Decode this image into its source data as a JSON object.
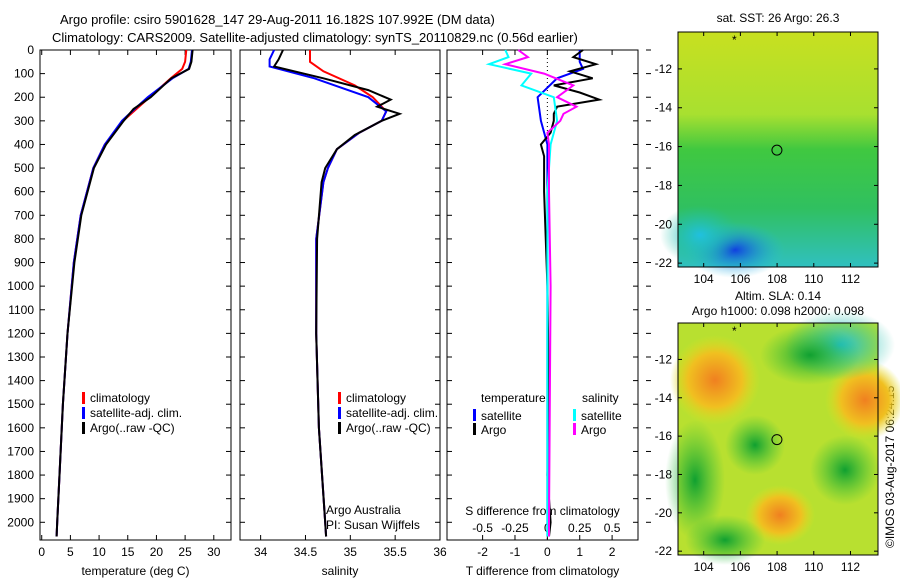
{
  "title_line1": "Argo profile: csiro 5901628_147 29-Aug-2011 16.182S 107.992E (DM data)",
  "title_line2": "Climatology: CARS2009. Satellite-adjusted climatology: synTS_20110829.nc (0.56d earlier)",
  "credit": "©IMOS 03-Aug-2017 06:24:15",
  "colors": {
    "climatology": "#ff0000",
    "satellite": "#0000ff",
    "argo": "#000000",
    "s_satellite": "#00ffff",
    "s_argo": "#ff00ff"
  },
  "chart_data": [
    {
      "type": "line",
      "id": "temperature",
      "xlabel": "temperature (deg C)",
      "ylabel": "",
      "xlim": [
        -0.3,
        33
      ],
      "ylim": [
        2075,
        0
      ],
      "xticks": [
        0,
        5,
        10,
        15,
        20,
        25,
        30
      ],
      "yticks": [
        0,
        100,
        200,
        300,
        400,
        500,
        600,
        700,
        800,
        900,
        1000,
        1100,
        1200,
        1300,
        1400,
        1500,
        1600,
        1700,
        1800,
        1900,
        2000
      ],
      "legend": [
        "climatology",
        "satellite-adj. clim.",
        "Argo(..raw -QC)"
      ],
      "series": [
        {
          "name": "climatology",
          "color": "#ff0000",
          "depth": [
            0,
            50,
            80,
            120,
            200,
            250,
            300,
            400,
            500,
            700,
            900,
            1200,
            1500,
            1800,
            2000,
            2060
          ],
          "values": [
            25.2,
            25,
            24.5,
            22.5,
            18.8,
            16.5,
            14.2,
            11,
            9,
            6.8,
            5.6,
            4.5,
            3.7,
            3.1,
            2.7,
            2.6
          ]
        },
        {
          "name": "satellite-adj. clim.",
          "color": "#0000ff",
          "depth": [
            0,
            50,
            80,
            120,
            200,
            250,
            300,
            400,
            500,
            700,
            900,
            1200,
            1500,
            1800,
            2000,
            2060
          ],
          "values": [
            26.2,
            26,
            25.6,
            22.8,
            18.5,
            16.2,
            14,
            11,
            9,
            6.8,
            5.6,
            4.5,
            3.7,
            3.1,
            2.7,
            2.6
          ]
        },
        {
          "name": "Argo(..raw -QC)",
          "color": "#000000",
          "depth": [
            0,
            50,
            80,
            120,
            200,
            250,
            300,
            400,
            500,
            700,
            900,
            1200,
            1500,
            1800,
            2000,
            2060
          ],
          "values": [
            26.3,
            26.1,
            25.7,
            22.6,
            19,
            16,
            14.3,
            11.2,
            9.1,
            6.9,
            5.7,
            4.5,
            3.7,
            3.1,
            2.7,
            2.6
          ]
        }
      ]
    },
    {
      "type": "line",
      "id": "salinity",
      "xlabel": "salinity",
      "ylabel": "",
      "xlim": [
        33.77,
        36.0
      ],
      "ylim": [
        2075,
        0
      ],
      "xticks": [
        34,
        34.5,
        35,
        35.5,
        36
      ],
      "legend": [
        "climatology",
        "satellite-adj. clim.",
        "Argo(..raw -QC)"
      ],
      "annotation": [
        "Argo Australia",
        "PI: Susan Wijffels"
      ],
      "series": [
        {
          "name": "climatology",
          "color": "#ff0000",
          "depth": [
            0,
            50,
            90,
            150,
            200,
            260,
            300,
            350,
            420,
            500,
            560,
            800,
            1200,
            1600,
            2000,
            2060
          ],
          "values": [
            34.55,
            34.55,
            34.7,
            35.05,
            35.25,
            35.4,
            35.35,
            35.1,
            34.85,
            34.75,
            34.7,
            34.62,
            34.62,
            34.65,
            34.72,
            34.73
          ]
        },
        {
          "name": "satellite-adj. clim.",
          "color": "#0000ff",
          "depth": [
            0,
            40,
            70,
            120,
            200,
            260,
            300,
            350,
            420,
            500,
            560,
            800,
            1200,
            1600,
            2000,
            2060
          ],
          "values": [
            34.15,
            34.1,
            34.1,
            34.6,
            35.2,
            35.4,
            35.35,
            35.1,
            34.85,
            34.75,
            34.7,
            34.62,
            34.62,
            34.65,
            34.72,
            34.73
          ]
        },
        {
          "name": "Argo(..raw -QC)",
          "color": "#000000",
          "depth": [
            0,
            40,
            70,
            120,
            170,
            210,
            240,
            270,
            300,
            330,
            360,
            420,
            500,
            560,
            800,
            1200,
            1600,
            2000,
            2060
          ],
          "values": [
            34.25,
            34.2,
            34.15,
            34.7,
            35.2,
            35.45,
            35.3,
            35.55,
            35.35,
            35.2,
            35.05,
            34.85,
            34.72,
            34.68,
            34.63,
            34.62,
            34.65,
            34.72,
            34.73
          ]
        }
      ]
    },
    {
      "type": "line",
      "id": "difference",
      "xlabel": "T difference from climatology",
      "x2label": "S difference from climatology",
      "xlim": [
        -3.1,
        2.8
      ],
      "ylim": [
        2075,
        0
      ],
      "xticks": [
        -2,
        -1,
        0,
        1,
        2
      ],
      "x2ticks": [
        "-0.5",
        "-0.25",
        "0",
        "0.25",
        "0.5"
      ],
      "legend": {
        "temperature_title": "temperature",
        "salinity_title": "salinity",
        "items": [
          "satellite",
          "Argo",
          "satellite",
          "Argo"
        ]
      },
      "series": [
        {
          "name": "T satellite",
          "color": "#0000ff",
          "depth": [
            0,
            50,
            80,
            120,
            200,
            300,
            400,
            600,
            1000,
            1500,
            2000,
            2060
          ],
          "values": [
            1.0,
            1.0,
            1.1,
            0.3,
            -0.3,
            -0.2,
            0,
            0,
            0,
            0,
            0,
            0
          ]
        },
        {
          "name": "T Argo",
          "color": "#000000",
          "depth": [
            0,
            30,
            60,
            90,
            120,
            150,
            180,
            210,
            240,
            270,
            300,
            350,
            400,
            450,
            600,
            1000,
            1500,
            1800,
            2000,
            2060
          ],
          "values": [
            1.1,
            0.8,
            1.5,
            0.7,
            1.4,
            0.2,
            1.0,
            1.6,
            0.3,
            0.2,
            0.2,
            0.1,
            -0.2,
            -0.1,
            -0.1,
            0,
            0.05,
            0,
            0.1,
            0.05
          ]
        },
        {
          "name": "S satellite",
          "color": "#00ffff",
          "depth": [
            0,
            30,
            60,
            100,
            150,
            200,
            300,
            400,
            600,
            1000,
            2000,
            2060
          ],
          "values": [
            -1.3,
            -1.2,
            -1.8,
            -0.5,
            -0.8,
            0.2,
            0.3,
            0.1,
            0,
            0,
            0,
            0
          ]
        },
        {
          "name": "S Argo",
          "color": "#ff00ff",
          "depth": [
            0,
            30,
            60,
            100,
            150,
            200,
            240,
            270,
            300,
            350,
            400,
            600,
            1000,
            2000,
            2060
          ],
          "values": [
            -0.9,
            -0.6,
            -1.3,
            -0.1,
            0.8,
            0.3,
            0.9,
            0.5,
            0.4,
            0,
            0.05,
            0.05,
            0.1,
            0.05,
            0.05
          ]
        }
      ]
    },
    {
      "type": "heatmap",
      "id": "sst_map",
      "title": "sat. SST: 26 Argo: 26.3",
      "xlim": [
        102.6,
        113.5
      ],
      "ylim": [
        -22.2,
        -10.1
      ],
      "xticks": [
        104,
        106,
        108,
        110,
        112
      ],
      "yticks": [
        -12,
        -14,
        -16,
        -18,
        -20,
        -22
      ],
      "profile_position": [
        107.992,
        -16.182
      ]
    },
    {
      "type": "heatmap",
      "id": "sla_map",
      "title_line1": "Altim. SLA: 0.14",
      "title_line2": "Argo h1000: 0.098 h2000: 0.098",
      "xlim": [
        102.6,
        113.5
      ],
      "ylim": [
        -22.2,
        -10.1
      ],
      "xticks": [
        104,
        106,
        108,
        110,
        112
      ],
      "yticks": [
        -12,
        -14,
        -16,
        -18,
        -20,
        -22
      ],
      "profile_position": [
        107.992,
        -16.182
      ]
    }
  ]
}
